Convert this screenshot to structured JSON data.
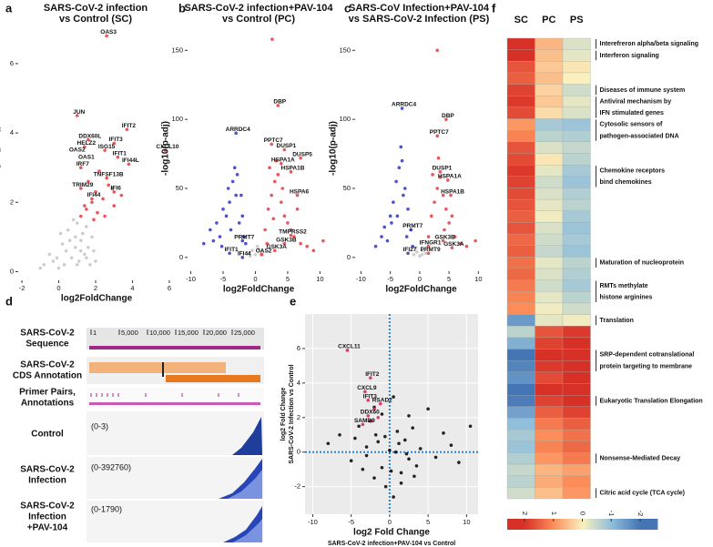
{
  "panel_letters": [
    "a",
    "b",
    "c",
    "d",
    "e",
    "f"
  ],
  "chart_data": [
    {
      "type": "scatter",
      "title": [
        "SARS-CoV-2 infection",
        "vs Control (SC)"
      ],
      "xlabel": "log2FoldChange",
      "ylabel": "-log10(p-adj)",
      "xlim": [
        -2.2,
        6.3
      ],
      "ylim": [
        -0.25,
        7.1
      ],
      "xticks": [
        -2,
        0,
        2,
        4,
        6
      ],
      "yticks": [
        0,
        2,
        4,
        6
      ],
      "series": [
        {
          "color": "#c4c4c4",
          "x": [
            -0.8,
            -0.5,
            -0.3,
            0,
            0.2,
            0.4,
            0.5,
            0.7,
            0.9,
            1.0,
            1.1,
            1.2,
            1.3,
            1.4,
            1.5,
            1.6,
            1.7,
            1.8,
            0.6,
            0.8,
            -0.1,
            0.3,
            1.9,
            2.0,
            -1.0,
            1.0,
            1.2,
            0.1,
            0.9,
            1.5
          ],
          "values": [
            0.2,
            0.5,
            0.3,
            0.1,
            0.8,
            0.6,
            1.2,
            0.4,
            1.0,
            1.4,
            0.3,
            0.9,
            1.1,
            0.5,
            1.3,
            0.7,
            0.2,
            1.0,
            0.9,
            1.5,
            0.4,
            0.2,
            0.6,
            0.3,
            0.1,
            0.2,
            0.6,
            1.1,
            0.7,
            0.4
          ]
        },
        {
          "color": "#e8383d",
          "x": [
            1.2,
            1.5,
            1.8,
            2.1,
            2.4,
            2.7,
            3.0,
            1.6,
            2.2,
            2.9,
            3.4,
            1.9,
            2.5,
            1.4,
            2.0,
            2.6,
            1.0,
            1.4,
            2.5,
            3.0,
            3.7,
            5.8,
            3.2,
            3.8,
            1.2,
            2.6,
            1.2,
            3.0,
            1.8,
            1.6
          ],
          "values": [
            1.6,
            1.8,
            2.0,
            1.7,
            2.1,
            2.5,
            1.9,
            2.6,
            2.9,
            2.4,
            2.2,
            1.5,
            1.6,
            1.9,
            2.3,
            6.8,
            4.5,
            3.6,
            3.5,
            3.7,
            4.1,
            3.5,
            3.3,
            3.1,
            3.0,
            2.7,
            2.4,
            2.3,
            2.1,
            3.8
          ]
        }
      ],
      "annotations": {
        "labels": [
          "OAS3",
          "JUN",
          "DDX60L",
          "HELZ2",
          "OAS2",
          "OAS1",
          "ISG15",
          "IFIT3",
          "IFIT2",
          "CXCL10",
          "IFIT1",
          "IFI44L",
          "IRF7",
          "TNFSF13B",
          "TRIM29",
          "IFI6",
          "IFI44"
        ],
        "x": [
          2.6,
          1.0,
          1.6,
          1.4,
          0.9,
          1.4,
          2.5,
          3.0,
          3.7,
          5.8,
          3.2,
          3.8,
          1.2,
          2.6,
          1.2,
          3.0,
          1.8
        ],
        "y": [
          6.8,
          4.5,
          3.8,
          3.6,
          3.4,
          3.2,
          3.5,
          3.7,
          4.1,
          3.5,
          3.3,
          3.1,
          3.0,
          2.7,
          2.4,
          2.3,
          2.1
        ]
      }
    },
    {
      "type": "scatter",
      "title": [
        "SARS-CoV-2 infection+PAV-104",
        "vs Control (PC)"
      ],
      "xlabel": "log2FoldChange",
      "ylabel": "-log10(p-adj)",
      "xlim": [
        -10.5,
        11.5
      ],
      "ylim": [
        -10,
        168
      ],
      "xticks": [
        -10,
        -5,
        0,
        5,
        10
      ],
      "yticks": [
        0,
        50,
        100,
        150
      ],
      "series": [
        {
          "color": "#c4c4c4",
          "x": [
            -1,
            -0.5,
            0,
            0.5,
            1,
            -0.8,
            0.3,
            0.8
          ],
          "values": [
            3,
            5,
            2,
            6,
            4,
            1,
            8,
            2
          ]
        },
        {
          "color": "#2b35c8",
          "x": [
            -8,
            -7,
            -6,
            -5.5,
            -5,
            -4.5,
            -4,
            -3.5,
            -3,
            -2.8,
            -2.5,
            -2,
            -1.8,
            -1.5,
            -4.2,
            -3.8,
            -5.2,
            -2.2,
            -3.2,
            -6.5,
            -3,
            -2,
            -4,
            -2
          ],
          "values": [
            10,
            20,
            25,
            15,
            35,
            30,
            40,
            55,
            45,
            60,
            25,
            30,
            15,
            10,
            50,
            20,
            8,
            45,
            65,
            12,
            90,
            12,
            3,
            0
          ]
        },
        {
          "color": "#e8383d",
          "x": [
            1.5,
            2,
            2.5,
            3,
            3.5,
            4,
            4.5,
            5,
            5.5,
            6,
            7,
            8,
            2.2,
            3.2,
            4.2,
            1.8,
            2.8,
            6.5,
            9,
            10.5,
            3.5,
            2.5,
            4.5,
            7,
            4,
            5.5,
            6.5,
            3,
            4.5,
            5.5,
            1,
            2.6
          ],
          "values": [
            20,
            35,
            45,
            55,
            60,
            40,
            30,
            25,
            20,
            15,
            10,
            8,
            65,
            70,
            50,
            10,
            28,
            35,
            5,
            12,
            110,
            82,
            78,
            72,
            68,
            62,
            45,
            5,
            10,
            16,
            2,
            158
          ]
        }
      ],
      "annotations": {
        "labels": [
          "DBP",
          "ARRDC4",
          "PPTC7",
          "DUSP1",
          "DUSP5",
          "HSPA1A",
          "HSPA1B",
          "HSPA6",
          "PRMT7",
          "IFIT1",
          "IFI44",
          "OAS2",
          "GSK3A",
          "GSK3B",
          "TMPRSS2"
        ],
        "x": [
          3.5,
          -3,
          2.5,
          4.5,
          7,
          4,
          5.5,
          6.5,
          -2,
          -4,
          -2,
          1,
          3,
          4.5,
          5.5
        ],
        "y": [
          110,
          90,
          82,
          78,
          72,
          68,
          62,
          45,
          12,
          3,
          0,
          2,
          5,
          10,
          16
        ]
      }
    },
    {
      "type": "scatter",
      "title": [
        "SARS-CoV Infection+PAV-104",
        "vs SARS-CoV-2 Infection (PS)"
      ],
      "xlabel": "log2FoldChange",
      "ylabel": "-log10(p-adj)",
      "xlim": [
        -11,
        11.5
      ],
      "ylim": [
        -10,
        168
      ],
      "xticks": [
        -10,
        -5,
        0,
        5,
        10
      ],
      "yticks": [
        0,
        50,
        100,
        150
      ],
      "series": [
        {
          "color": "#c4c4c4",
          "x": [
            -1,
            -0.5,
            0,
            0.5,
            1,
            -0.6,
            0.4
          ],
          "values": [
            2,
            4,
            1,
            5,
            3,
            7,
            2
          ]
        },
        {
          "color": "#2b35c8",
          "x": [
            -7.5,
            -6.5,
            -6,
            -5,
            -4.5,
            -4,
            -3.5,
            -3,
            -2.5,
            -2,
            -1.5,
            -4.8,
            -3.2,
            -2.8,
            -5.5,
            -3.8,
            -2.2,
            -1.2,
            -3,
            -1.5,
            -2
          ],
          "values": [
            8,
            15,
            22,
            30,
            40,
            55,
            65,
            70,
            50,
            35,
            20,
            25,
            80,
            45,
            12,
            30,
            15,
            8,
            108,
            20,
            3
          ]
        },
        {
          "color": "#e8383d",
          "x": [
            1.5,
            2,
            2.5,
            3,
            3.5,
            4,
            4.5,
            5,
            6,
            7,
            8,
            9.5,
            2.2,
            3.2,
            4.2,
            5.5,
            3,
            4.5,
            3,
            3.5,
            4.8,
            5.3,
            4,
            1.5,
            5.5,
            1.5
          ],
          "values": [
            15,
            30,
            40,
            50,
            58,
            45,
            35,
            25,
            15,
            10,
            8,
            12,
            60,
            72,
            20,
            30,
            150,
            100,
            88,
            62,
            56,
            45,
            12,
            8,
            7,
            3
          ]
        }
      ],
      "annotations": {
        "labels": [
          "ARRDC4",
          "DBP",
          "PPTC7",
          "DUSP1",
          "HSPA1A",
          "HSPA1B",
          "PRMT7",
          "GSK3B",
          "IFNGR1",
          "GSK3A",
          "IFI27",
          "PRMT9"
        ],
        "x": [
          -3,
          4.5,
          3,
          3.5,
          4.8,
          5.3,
          -1.5,
          4,
          1.5,
          5.5,
          -2,
          1.5
        ],
        "y": [
          108,
          100,
          88,
          62,
          56,
          45,
          20,
          12,
          8,
          7,
          3,
          3
        ]
      }
    },
    {
      "type": "scatter",
      "xlabel": [
        "log2 Fold Change",
        "SARS-CoV-2 infection+PAV-104 vs Control"
      ],
      "ylabel": [
        "log2 Fold Change",
        "SARS-CoV-2 Infection vs Control"
      ],
      "xlim": [
        -11,
        11.5
      ],
      "ylim": [
        -3.6,
        8.0
      ],
      "xticks": [
        -10,
        -5,
        0,
        5,
        10
      ],
      "yticks": [
        -2,
        0,
        2,
        4,
        6
      ],
      "grid": true,
      "reference_lines": {
        "x": 0,
        "y": 0
      },
      "series": [
        {
          "color": "#000000",
          "x": [
            -8,
            -6.5,
            -5,
            -4.5,
            -4,
            -3.5,
            -3,
            -2.5,
            -2,
            -1.5,
            -1,
            -0.5,
            0,
            0.5,
            1,
            1.5,
            2,
            2.5,
            3,
            3.5,
            4,
            5,
            6,
            7,
            8,
            9,
            10.5,
            -2,
            -1,
            0.5,
            1.5,
            2.5,
            -3,
            -1.8,
            0.2,
            1.2,
            3.2,
            -0.6,
            0.8,
            2.2
          ],
          "values": [
            0.5,
            1,
            -0.5,
            0.8,
            1.5,
            -1,
            0.3,
            1.8,
            -1.5,
            0.6,
            2.2,
            -2,
            0.1,
            -2.6,
            1.2,
            -1.2,
            0.7,
            -0.4,
            1.4,
            -0.8,
            0.2,
            2.5,
            -0.3,
            1.1,
            0.4,
            -0.6,
            1.5,
            2.6,
            -0.9,
            3.2,
            -1.8,
            2.1,
            -0.2,
            1,
            -1.1,
            0.5,
            -1.4,
            0.9,
            0,
            -0.1
          ]
        },
        {
          "color": "#d81b60",
          "x": [
            -5.5,
            -2.5,
            -3.2,
            -2.8,
            -1.2,
            -2.8,
            -3.5,
            -2,
            -1.5,
            -2.4
          ],
          "values": [
            5.9,
            4.3,
            3.5,
            3.0,
            2.8,
            2.1,
            1.6,
            2.5,
            2.0,
            1.8
          ]
        }
      ],
      "annotations": {
        "labels": [
          "CXCL11",
          "IFIT2",
          "CXCL9",
          "IFIT3",
          "RSAD2",
          "DDX60",
          "SAMD9"
        ],
        "x": [
          -5.5,
          -2.5,
          -3.2,
          -2.8,
          -1.2,
          -2.8,
          -3.5
        ],
        "y": [
          5.9,
          4.3,
          3.5,
          3.0,
          2.8,
          2.1,
          1.6
        ]
      }
    },
    {
      "type": "heatmap",
      "columns": [
        "SC",
        "PC",
        "PS"
      ],
      "clim": [
        -2.6,
        2.6
      ],
      "colorbar_ticks": [
        2,
        1,
        0,
        -1,
        -2
      ],
      "values": [
        [
          2.3,
          0.6,
          -0.3
        ],
        [
          2.2,
          0.5,
          -0.2
        ],
        [
          1.6,
          0.4,
          0.1
        ],
        [
          1.5,
          0.5,
          0.0
        ],
        [
          1.8,
          0.3,
          -0.4
        ],
        [
          1.9,
          0.4,
          -0.2
        ],
        [
          1.7,
          0.2,
          -0.3
        ],
        [
          0.9,
          -0.8,
          -0.9
        ],
        [
          1.1,
          -0.6,
          -0.7
        ],
        [
          1.6,
          -0.3,
          -0.5
        ],
        [
          1.7,
          0.1,
          -0.6
        ],
        [
          1.9,
          -0.2,
          -0.8
        ],
        [
          1.8,
          -0.4,
          -0.9
        ],
        [
          1.7,
          -0.3,
          -0.7
        ],
        [
          1.6,
          -0.2,
          -0.6
        ],
        [
          1.5,
          -0.1,
          -0.8
        ],
        [
          1.6,
          -0.3,
          -0.9
        ],
        [
          1.4,
          -0.4,
          -0.8
        ],
        [
          1.5,
          -0.5,
          -0.9
        ],
        [
          1.3,
          -0.2,
          -0.6
        ],
        [
          1.4,
          -0.3,
          -0.7
        ],
        [
          1.2,
          -0.4,
          -0.8
        ],
        [
          1.1,
          -0.2,
          -0.6
        ],
        [
          1.0,
          -0.1,
          -0.4
        ],
        [
          -1.5,
          -0.2,
          -0.1
        ],
        [
          -0.6,
          1.6,
          1.9
        ],
        [
          -1.2,
          1.8,
          2.1
        ],
        [
          -2.0,
          2.0,
          2.3
        ],
        [
          -1.8,
          1.9,
          2.2
        ],
        [
          -1.6,
          1.7,
          2.0
        ],
        [
          -2.1,
          2.1,
          2.4
        ],
        [
          -1.9,
          1.8,
          2.2
        ],
        [
          -1.4,
          1.5,
          1.8
        ],
        [
          -1.0,
          1.2,
          1.5
        ],
        [
          -0.8,
          1.0,
          1.3
        ],
        [
          -0.9,
          1.1,
          1.4
        ],
        [
          -0.7,
          0.9,
          1.2
        ],
        [
          -0.5,
          0.6,
          0.8
        ],
        [
          -0.6,
          0.7,
          1.0
        ],
        [
          -0.4,
          0.5,
          0.9
        ]
      ],
      "row_labels": [
        [
          "Interefreron alpha/beta signaling"
        ],
        [
          "Interferon signaling"
        ],
        null,
        null,
        [
          "Diseases of immune system"
        ],
        [
          "Antiviral mechanism by",
          "IFN stimulated genes"
        ],
        null,
        [
          "Cytosolic sensors of",
          "pathogen-associated DNA"
        ],
        null,
        null,
        null,
        [
          "Chemokine receptors",
          "bind chemokines"
        ],
        null,
        null,
        null,
        null,
        null,
        null,
        null,
        [
          "Maturation of nucleoprotein"
        ],
        null,
        [
          "RMTs methylate",
          "histone arginines"
        ],
        null,
        null,
        [
          "Translation"
        ],
        null,
        null,
        [
          "SRP-dependent cotranslational",
          "protein targeting to membrane"
        ],
        null,
        null,
        null,
        [
          "Eukaryotic Translation Elongation"
        ],
        null,
        null,
        null,
        null,
        [
          "Nonsense-Mediated Decay"
        ],
        null,
        null,
        [
          "Citric acid cycle (TCA cycle)"
        ]
      ]
    }
  ],
  "genome": {
    "track_labels": [
      [
        "SARS-CoV-2",
        "Sequence"
      ],
      [
        "SARS-CoV-2",
        "CDS Annotation"
      ],
      [
        "Primer Pairs,",
        "Annotations"
      ],
      [
        "Control"
      ],
      [
        "SARS-CoV-2",
        "Infection"
      ],
      [
        "SARS-CoV-2",
        "Infection",
        "+PAV-104"
      ]
    ],
    "ranges": [
      "(0-3)",
      "(0-392760)",
      "(0-1790)"
    ],
    "xlim": [
      1,
      30000
    ],
    "ruler_ticks": [
      1,
      {
        "value": 5000,
        "label": "5,000"
      },
      {
        "value": 10000,
        "label": "10,000"
      },
      {
        "value": 15000,
        "label": "15,000"
      },
      {
        "value": 20000,
        "label": "20,000"
      },
      {
        "value": 25000,
        "label": "25,000"
      }
    ]
  }
}
